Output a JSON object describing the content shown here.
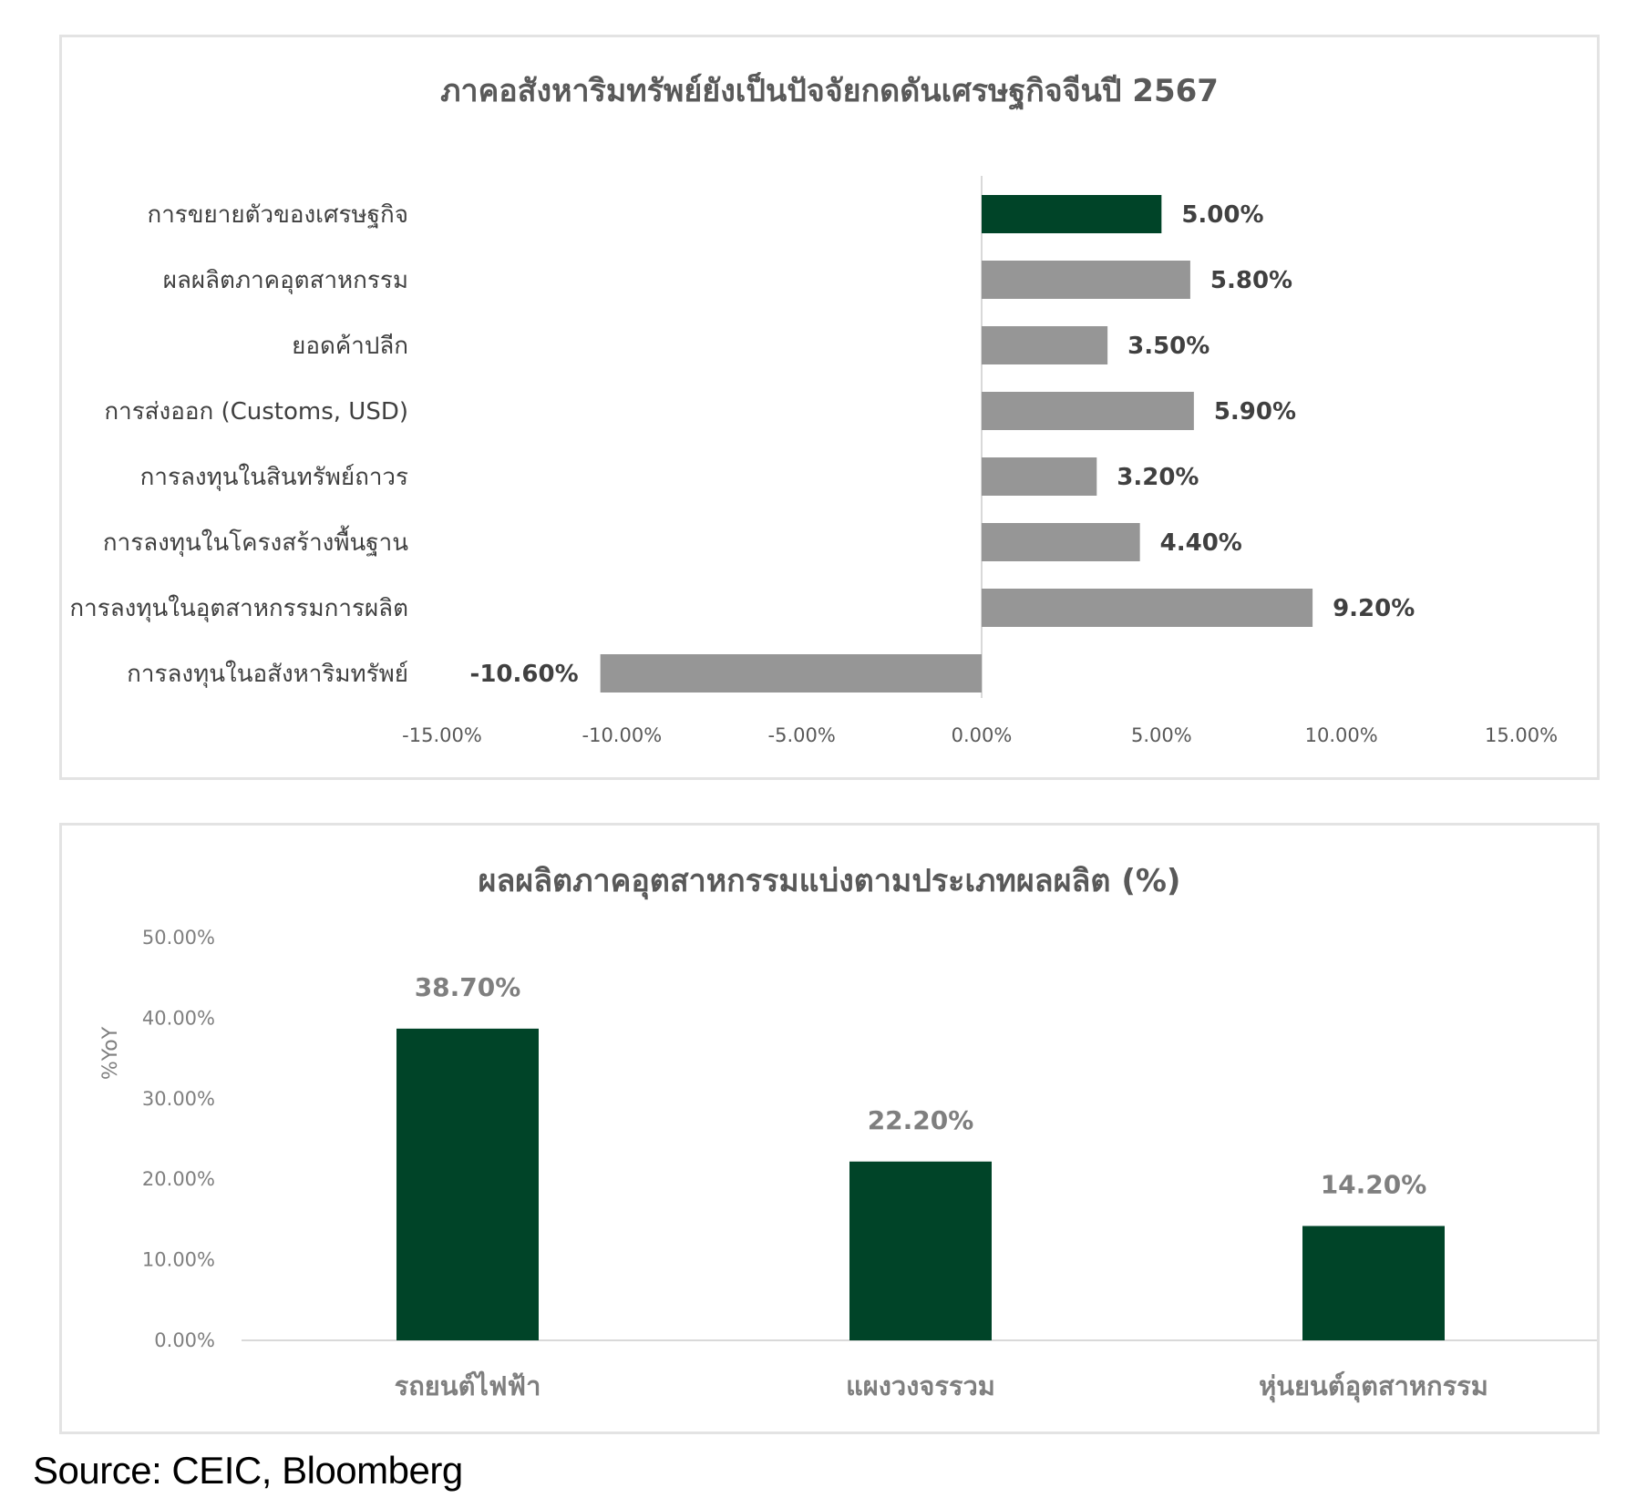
{
  "chart_data": [
    {
      "type": "bar",
      "orientation": "horizontal",
      "title": "ภาคอสังหาริมทรัพย์ยังเป็นปัจจัยกดดันเศรษฐกิจจีนปี 2567",
      "xlabel": "",
      "ylabel": "",
      "xlim": [
        -15,
        15
      ],
      "categories": [
        "การขยายตัวของเศรษฐกิจ",
        "ผลผลิตภาคอุตสาหกรรม",
        "ยอดค้าปลีก",
        "การส่งออก (Customs, USD)",
        "การลงทุนในสินทรัพย์ถาวร",
        "การลงทุนในโครงสร้างพื้นฐาน",
        "การลงทุนในอุตสาหกรรมการผลิต",
        "การลงทุนในอสังหาริมทรัพย์"
      ],
      "values": [
        5.0,
        5.8,
        3.5,
        5.9,
        3.2,
        4.4,
        9.2,
        -10.6
      ],
      "value_labels": [
        "5.00%",
        "5.80%",
        "3.50%",
        "5.90%",
        "3.20%",
        "4.40%",
        "9.20%",
        "-10.60%"
      ],
      "bar_colors": [
        "#004428",
        "#969696",
        "#969696",
        "#969696",
        "#969696",
        "#969696",
        "#969696",
        "#969696"
      ],
      "x_ticks": [
        -15,
        -10,
        -5,
        0,
        5,
        10,
        15
      ],
      "x_tick_labels": [
        "-15.00%",
        "-10.00%",
        "-5.00%",
        "0.00%",
        "5.00%",
        "10.00%",
        "15.00%"
      ],
      "grid": false,
      "legend": "none"
    },
    {
      "type": "bar",
      "orientation": "vertical",
      "title": "ผลผลิตภาคอุตสาหกรรมแบ่งตามประเภทผลผลิต (%)",
      "xlabel": "",
      "ylabel": "%YoY",
      "ylim": [
        0,
        50
      ],
      "categories": [
        "รถยนต์ไฟฟ้า",
        "แผงวงจรรวม",
        "หุ่นยนต์อุตสาหกรรม"
      ],
      "values": [
        38.7,
        22.2,
        14.2
      ],
      "value_labels": [
        "38.70%",
        "22.20%",
        "14.20%"
      ],
      "bar_color": "#004428",
      "y_ticks": [
        0,
        10,
        20,
        30,
        40,
        50
      ],
      "y_tick_labels": [
        "0.00%",
        "10.00%",
        "20.00%",
        "30.00%",
        "40.00%",
        "50.00%"
      ],
      "grid": false,
      "legend": "none"
    }
  ],
  "source_text": "Source: CEIC, Bloomberg"
}
